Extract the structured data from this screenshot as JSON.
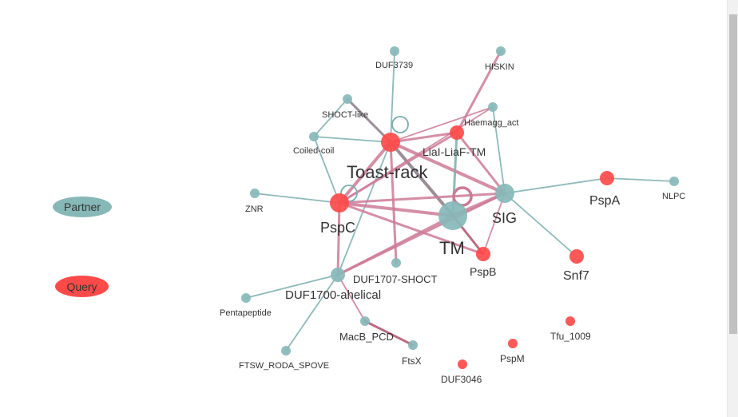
{
  "colors": {
    "partner": "#87b8b8",
    "query": "#ff4a4a",
    "edge_pink": "#cc7a96",
    "edge_teal": "#7aadae",
    "edge_gray": "#8a7a85",
    "edge_darkpink": "#b0506a"
  },
  "legend": {
    "partner_label": "Partner",
    "query_label": "Query"
  },
  "nodes": [
    {
      "id": "toast",
      "label": "Toast-rack",
      "type": "query",
      "size": "large",
      "self_loop": true
    },
    {
      "id": "lial",
      "label": "LiaI-LiaF-TM",
      "type": "query",
      "size": "medium"
    },
    {
      "id": "pspc",
      "label": "PspC",
      "type": "query",
      "size": "large",
      "self_loop": true
    },
    {
      "id": "tm",
      "label": "TM",
      "type": "partner",
      "size": "xlarge",
      "self_loop": true
    },
    {
      "id": "sig",
      "label": "SIG",
      "type": "partner",
      "size": "large"
    },
    {
      "id": "pspa",
      "label": "PspA",
      "type": "query",
      "size": "medium"
    },
    {
      "id": "nlpc",
      "label": "NLPC",
      "type": "partner",
      "size": "small"
    },
    {
      "id": "pspb",
      "label": "PspB",
      "type": "query",
      "size": "medium"
    },
    {
      "id": "snf7",
      "label": "Snf7",
      "type": "query",
      "size": "medium"
    },
    {
      "id": "duf3739",
      "label": "DUF3739",
      "type": "partner",
      "size": "small"
    },
    {
      "id": "hiskin",
      "label": "HISKIN",
      "type": "partner",
      "size": "small"
    },
    {
      "id": "shoct",
      "label": "SHOCT-like",
      "type": "partner",
      "size": "small"
    },
    {
      "id": "haem",
      "label": "Haemagg_act",
      "type": "partner",
      "size": "small"
    },
    {
      "id": "coil",
      "label": "Coiled-coil",
      "type": "partner",
      "size": "small"
    },
    {
      "id": "znr",
      "label": "ZNR",
      "type": "partner",
      "size": "small"
    },
    {
      "id": "duf1707",
      "label": "DUF1707-SHOCT",
      "type": "partner",
      "size": "small"
    },
    {
      "id": "duf1700",
      "label": "DUF1700-ahelical",
      "type": "partner",
      "size": "medium"
    },
    {
      "id": "penta",
      "label": "Pentapeptide",
      "type": "partner",
      "size": "small"
    },
    {
      "id": "macb",
      "label": "MacB_PCD",
      "type": "partner",
      "size": "small"
    },
    {
      "id": "ftsx",
      "label": "FtsX",
      "type": "partner",
      "size": "small"
    },
    {
      "id": "ftsw",
      "label": "FTSW_RODA_SPOVE",
      "type": "partner",
      "size": "small"
    },
    {
      "id": "tfu",
      "label": "Tfu_1009",
      "type": "query",
      "size": "small"
    },
    {
      "id": "pspm",
      "label": "PspM",
      "type": "query",
      "size": "small"
    },
    {
      "id": "duf3046",
      "label": "DUF3046",
      "type": "query",
      "size": "small"
    }
  ],
  "edges": [
    {
      "source": "toast",
      "target": "tm",
      "color": "gray",
      "weight": "heavy"
    },
    {
      "source": "toast",
      "target": "sig",
      "color": "pink",
      "weight": "heavy"
    },
    {
      "source": "toast",
      "target": "pspc",
      "color": "pink",
      "weight": "heavy"
    },
    {
      "source": "toast",
      "target": "lial",
      "color": "pink",
      "weight": "medium"
    },
    {
      "source": "toast",
      "target": "duf1707",
      "color": "pink",
      "weight": "medium"
    },
    {
      "source": "toast",
      "target": "duf1700",
      "color": "teal",
      "weight": "light"
    },
    {
      "source": "toast",
      "target": "duf3739",
      "color": "teal",
      "weight": "light"
    },
    {
      "source": "toast",
      "target": "shoct",
      "color": "gray",
      "weight": "medium"
    },
    {
      "source": "toast",
      "target": "coil",
      "color": "teal",
      "weight": "light"
    },
    {
      "source": "toast",
      "target": "haem",
      "color": "pink",
      "weight": "light"
    },
    {
      "source": "lial",
      "target": "hiskin",
      "color": "pink",
      "weight": "medium"
    },
    {
      "source": "lial",
      "target": "sig",
      "color": "pink",
      "weight": "medium"
    },
    {
      "source": "lial",
      "target": "pspc",
      "color": "pink",
      "weight": "medium"
    },
    {
      "source": "lial",
      "target": "tm",
      "color": "teal",
      "weight": "medium"
    },
    {
      "source": "pspc",
      "target": "tm",
      "color": "pink",
      "weight": "heavy"
    },
    {
      "source": "pspc",
      "target": "sig",
      "color": "pink",
      "weight": "medium"
    },
    {
      "source": "pspc",
      "target": "haem",
      "color": "pink",
      "weight": "light"
    },
    {
      "source": "pspc",
      "target": "coil",
      "color": "teal",
      "weight": "light"
    },
    {
      "source": "pspc",
      "target": "znr",
      "color": "teal",
      "weight": "light"
    },
    {
      "source": "pspc",
      "target": "pspb",
      "color": "pink",
      "weight": "medium"
    },
    {
      "source": "pspc",
      "target": "duf1700",
      "color": "pink",
      "weight": "medium"
    },
    {
      "source": "tm",
      "target": "sig",
      "color": "pink",
      "weight": "heavy"
    },
    {
      "source": "tm",
      "target": "duf1700",
      "color": "pink",
      "weight": "medium"
    },
    {
      "source": "tm",
      "target": "pspb",
      "color": "darkpink",
      "weight": "medium"
    },
    {
      "source": "sig",
      "target": "duf1700",
      "color": "pink",
      "weight": "medium"
    },
    {
      "source": "sig",
      "target": "pspa",
      "color": "teal",
      "weight": "light"
    },
    {
      "source": "sig",
      "target": "snf7",
      "color": "teal",
      "weight": "light"
    },
    {
      "source": "sig",
      "target": "haem",
      "color": "teal",
      "weight": "light"
    },
    {
      "source": "sig",
      "target": "pspb",
      "color": "pink",
      "weight": "light"
    },
    {
      "source": "pspa",
      "target": "nlpc",
      "color": "teal",
      "weight": "light"
    },
    {
      "source": "duf1700",
      "target": "penta",
      "color": "teal",
      "weight": "light"
    },
    {
      "source": "duf1700",
      "target": "macb",
      "color": "pink",
      "weight": "light"
    },
    {
      "source": "duf1700",
      "target": "ftsw",
      "color": "teal",
      "weight": "light"
    },
    {
      "source": "macb",
      "target": "ftsx",
      "color": "darkpink",
      "weight": "medium"
    },
    {
      "source": "shoct",
      "target": "coil",
      "color": "teal",
      "weight": "light"
    }
  ]
}
